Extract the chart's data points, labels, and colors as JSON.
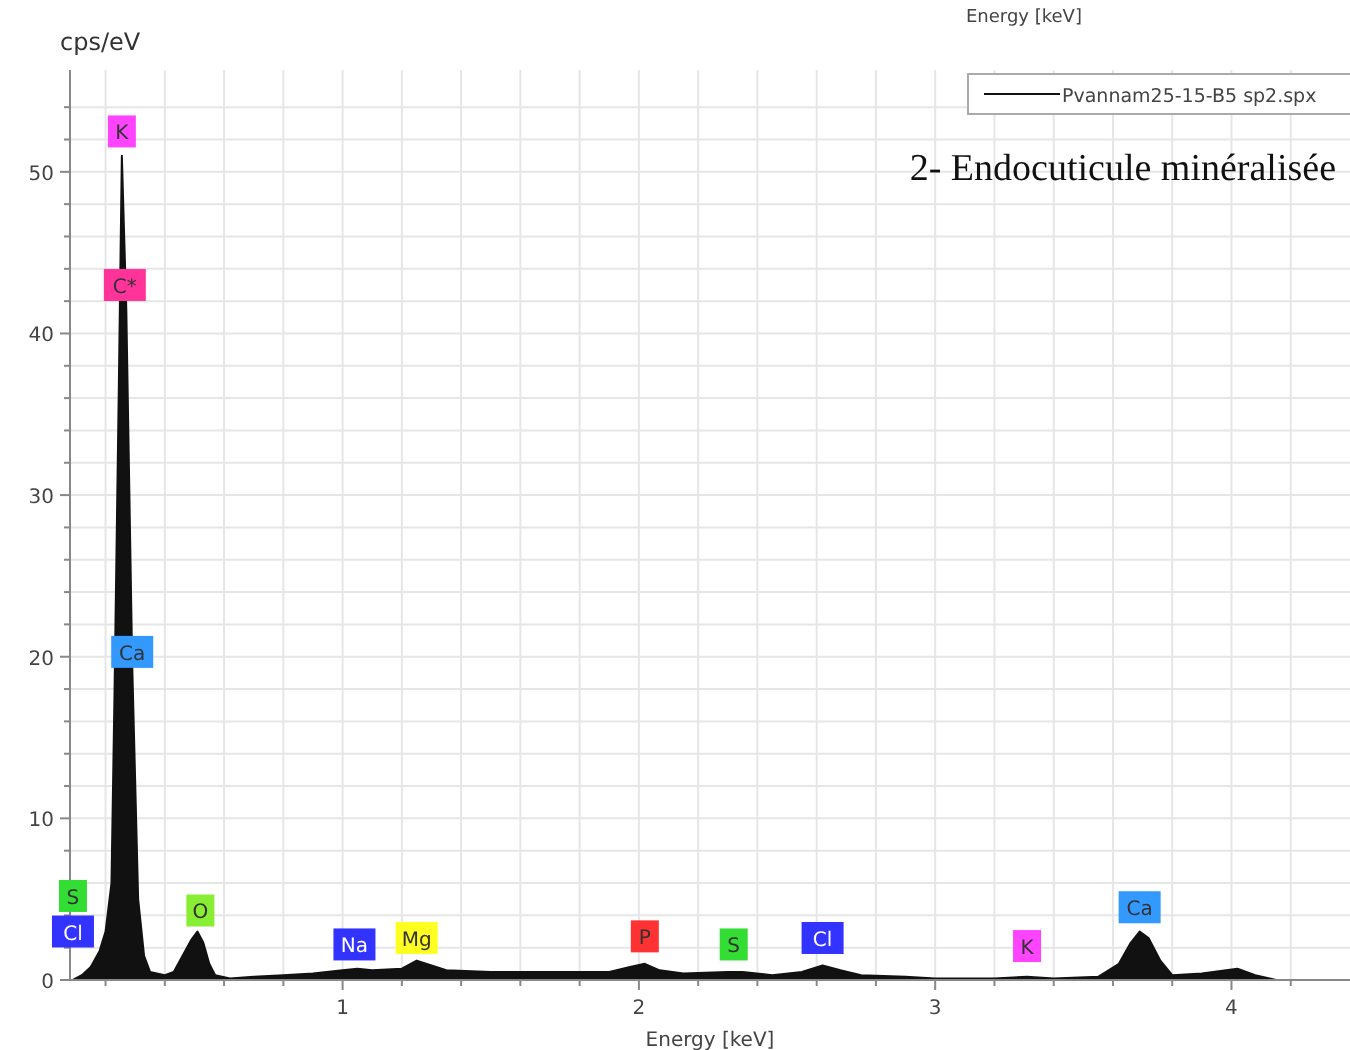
{
  "chart_data": {
    "type": "area",
    "title": "2- Endocuticule minéralisée",
    "xlabel": "Energy [keV]",
    "ylabel": "cps/eV",
    "x": [
      0.09,
      0.12,
      0.15,
      0.18,
      0.2,
      0.22,
      0.23,
      0.245,
      0.255,
      0.27,
      0.29,
      0.31,
      0.33,
      0.35,
      0.4,
      0.43,
      0.46,
      0.49,
      0.51,
      0.53,
      0.55,
      0.57,
      0.62,
      0.7,
      0.8,
      0.9,
      1.0,
      1.05,
      1.1,
      1.2,
      1.25,
      1.3,
      1.35,
      1.5,
      1.7,
      1.9,
      1.97,
      2.02,
      2.07,
      2.15,
      2.3,
      2.35,
      2.45,
      2.55,
      2.62,
      2.68,
      2.75,
      2.9,
      3.0,
      3.2,
      3.31,
      3.4,
      3.55,
      3.62,
      3.66,
      3.69,
      3.72,
      3.76,
      3.8,
      3.9,
      4.02,
      4.08,
      4.15,
      4.4
    ],
    "series": [
      {
        "name": "Pvannam25-15-B5 sp2.spx",
        "color": "#111111",
        "values": [
          0,
          0.3,
          0.8,
          1.8,
          3,
          6,
          17.5,
          37,
          51,
          41.5,
          19.5,
          5,
          1.5,
          0.5,
          0.3,
          0.5,
          1.5,
          2.5,
          3,
          2.3,
          1,
          0.3,
          0.1,
          0.2,
          0.3,
          0.4,
          0.6,
          0.7,
          0.6,
          0.7,
          1.2,
          0.9,
          0.6,
          0.5,
          0.5,
          0.5,
          0.8,
          1,
          0.6,
          0.4,
          0.5,
          0.5,
          0.3,
          0.5,
          0.9,
          0.6,
          0.3,
          0.2,
          0.1,
          0.1,
          0.2,
          0.1,
          0.2,
          1,
          2.3,
          3,
          2.6,
          1.2,
          0.3,
          0.4,
          0.7,
          0.3,
          0,
          0
        ]
      }
    ],
    "xlim": [
      0.08,
      4.4
    ],
    "ylim": [
      0,
      56.3
    ],
    "xticks": [
      {
        "value": 0.2,
        "label": null
      },
      {
        "value": 0.4,
        "label": null
      },
      {
        "value": 0.6,
        "label": null
      },
      {
        "value": 0.8,
        "label": null
      },
      1,
      {
        "value": 1.2,
        "label": null
      },
      {
        "value": 1.4,
        "label": null
      },
      {
        "value": 1.6,
        "label": null
      },
      {
        "value": 1.8,
        "label": null
      },
      2,
      {
        "value": 2.2,
        "label": null
      },
      {
        "value": 2.4,
        "label": null
      },
      {
        "value": 2.6,
        "label": null
      },
      {
        "value": 2.8,
        "label": null
      },
      3,
      {
        "value": 3.2,
        "label": null
      },
      {
        "value": 3.4,
        "label": null
      },
      {
        "value": 3.6,
        "label": null
      },
      {
        "value": 3.8,
        "label": null
      },
      4,
      {
        "value": 4.2,
        "label": null
      }
    ],
    "yticks": [
      0,
      {
        "value": 2,
        "label": null
      },
      {
        "value": 4,
        "label": null
      },
      {
        "value": 6,
        "label": null
      },
      {
        "value": 8,
        "label": null
      },
      10,
      {
        "value": 12,
        "label": null
      },
      {
        "value": 14,
        "label": null
      },
      {
        "value": 16,
        "label": null
      },
      {
        "value": 18,
        "label": null
      },
      20,
      {
        "value": 22,
        "label": null
      },
      {
        "value": 24,
        "label": null
      },
      {
        "value": 26,
        "label": null
      },
      {
        "value": 28,
        "label": null
      },
      30,
      {
        "value": 32,
        "label": null
      },
      {
        "value": 34,
        "label": null
      },
      {
        "value": 36,
        "label": null
      },
      {
        "value": 38,
        "label": null
      },
      40,
      {
        "value": 42,
        "label": null
      },
      {
        "value": 44,
        "label": null
      },
      {
        "value": 46,
        "label": null
      },
      {
        "value": 48,
        "label": null
      },
      50,
      {
        "value": 52,
        "label": null
      },
      {
        "value": 54,
        "label": null
      }
    ],
    "grid": true,
    "legend": "top right",
    "annotations": [
      {
        "text": "K",
        "x": 0.255,
        "y": 52.5
      },
      {
        "text": "C*",
        "x": 0.265,
        "y": 43
      },
      {
        "text": "Ca",
        "x": 0.29,
        "y": 20.3
      },
      {
        "text": "S",
        "x": 0.09,
        "y": 5.2
      },
      {
        "text": "Cl",
        "x": 0.09,
        "y": 3
      },
      {
        "text": "O",
        "x": 0.52,
        "y": 4.3
      },
      {
        "text": "Na",
        "x": 1.04,
        "y": 2.2
      },
      {
        "text": "Mg",
        "x": 1.25,
        "y": 2.6
      },
      {
        "text": "P",
        "x": 2.02,
        "y": 2.7
      },
      {
        "text": "S",
        "x": 2.32,
        "y": 2.2
      },
      {
        "text": "Cl",
        "x": 2.62,
        "y": 2.6
      },
      {
        "text": "K",
        "x": 3.31,
        "y": 2.1
      },
      {
        "text": "Ca",
        "x": 3.69,
        "y": 4.5
      },
      "Energy [keV]"
    ]
  }
}
